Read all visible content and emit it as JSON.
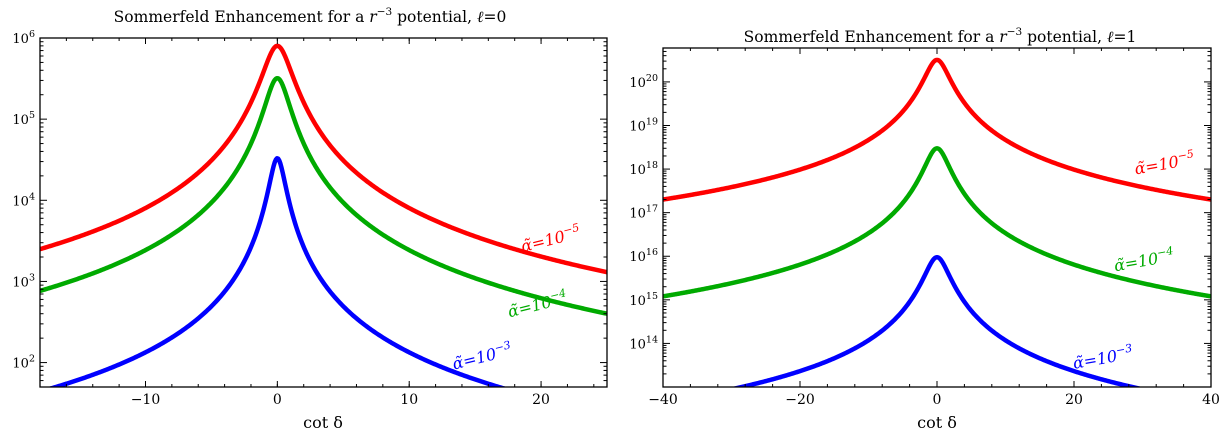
{
  "chart_data": [
    {
      "type": "line",
      "title": "Sommerfeld Enhancement for a r⁻³ potential, ℓ=0",
      "title_parts": {
        "pre": "Sommerfeld Enhancement for a ",
        "r": "r",
        "exp": "−3",
        "post": " potential, ",
        "ell": "ℓ",
        "ell_val": "=0"
      },
      "xlabel": "cot δ",
      "ylabel": "",
      "x_scale": "linear",
      "y_scale": "log",
      "xlim": [
        -18,
        25
      ],
      "ylim": [
        50,
        1000000
      ],
      "grid": false,
      "xticks": [
        -10,
        0,
        10,
        20
      ],
      "xtick_labels": [
        "−10",
        "0",
        "10",
        "20"
      ],
      "yticks": [
        100,
        1000,
        10000,
        100000,
        1000000
      ],
      "ytick_base": "10",
      "ytick_exps": [
        "2",
        "3",
        "4",
        "5",
        "6"
      ],
      "series": [
        {
          "name": "α̃=10⁻⁵",
          "label_main": "α̃=10",
          "label_exp": "−5",
          "color": "#ff0000",
          "peak_x": 0,
          "peak": 800000,
          "gamma": 1.0,
          "far_x": 25,
          "far_y": 1300
        },
        {
          "name": "α̃=10⁻⁴",
          "label_main": "α̃=10",
          "label_exp": "−4",
          "color": "#00aa00",
          "peak_x": 0,
          "peak": 320000,
          "gamma": 0.85,
          "far_x": 25,
          "far_y": 400
        },
        {
          "name": "α̃=10⁻³",
          "label_main": "α̃=10",
          "label_exp": "−3",
          "color": "#0000ff",
          "peak_x": 0,
          "peak": 33000,
          "gamma": 0.55,
          "far_x": 16.8,
          "far_y": 50
        }
      ]
    },
    {
      "type": "line",
      "title": "Sommerfeld Enhancement for a r⁻³ potential, ℓ=1",
      "title_parts": {
        "pre": "Sommerfeld Enhancement for a ",
        "r": "r",
        "exp": "−3",
        "post": " potential, ",
        "ell": "ℓ",
        "ell_val": "=1"
      },
      "xlabel": "cot δ",
      "ylabel": "",
      "x_scale": "linear",
      "y_scale": "log",
      "xlim": [
        -40,
        40
      ],
      "ylim": 10000000000000.0,
      "ylim_range": [
        10000000000000.0,
        6e+20
      ],
      "grid": false,
      "xticks": [
        -40,
        -20,
        0,
        20,
        40
      ],
      "xtick_labels": [
        "−40",
        "−20",
        "0",
        "20",
        "40"
      ],
      "yticks": [
        100000000000000.0,
        1000000000000000.0,
        1e+16,
        1e+17,
        1e+18,
        1e+19,
        1e+20
      ],
      "ytick_base": "10",
      "ytick_exps": [
        "14",
        "15",
        "16",
        "17",
        "18",
        "19",
        "20"
      ],
      "series": [
        {
          "name": "α̃=10⁻⁵",
          "label_main": "α̃=10",
          "label_exp": "−5",
          "color": "#ff0000",
          "peak_x": 0,
          "peak": 3.2e+20,
          "gamma": 1.6,
          "far_x": 40,
          "far_y": 2e+17
        },
        {
          "name": "α̃=10⁻⁴",
          "label_main": "α̃=10",
          "label_exp": "−4",
          "color": "#00aa00",
          "peak_x": 0,
          "peak": 3e+18,
          "gamma": 1.6,
          "far_x": 40,
          "far_y": 1200000000000000.0
        },
        {
          "name": "α̃=10⁻³",
          "label_main": "α̃=10",
          "label_exp": "−3",
          "color": "#0000ff",
          "peak_x": 0,
          "peak": 9500000000000000.0,
          "gamma": 1.6,
          "far_x": 28.5,
          "far_y": 10000000000000.0
        }
      ]
    }
  ]
}
